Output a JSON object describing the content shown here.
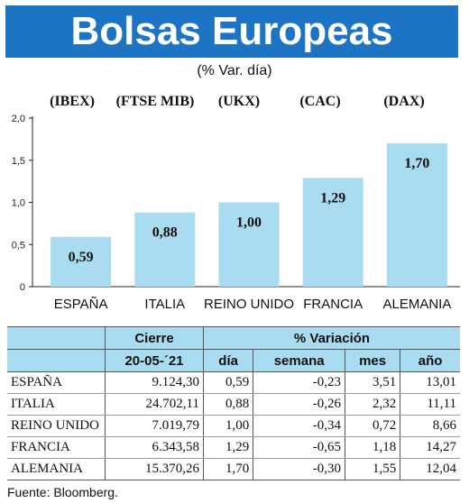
{
  "header": {
    "title": "Bolsas Europeas",
    "subtitle": "(% Var. día)"
  },
  "tickers": [
    "(IBEX)",
    "(FTSE MIB)",
    "(UKX)",
    "(CAC)",
    "(DAX)"
  ],
  "chart_data": {
    "type": "bar",
    "categories": [
      "ESPAÑA",
      "ITALIA",
      "REINO UNIDO",
      "FRANCIA",
      "ALEMANIA"
    ],
    "values": [
      0.59,
      0.88,
      1.0,
      1.29,
      1.7
    ],
    "value_labels": [
      "0,59",
      "0,88",
      "1,00",
      "1,29",
      "1,70"
    ],
    "yticks": [
      "0",
      "0,5",
      "1,0",
      "1,5",
      "2,0"
    ],
    "ylim": [
      0,
      2.0
    ],
    "bar_color": "#a9dcf0",
    "grid": false
  },
  "table": {
    "group_headers": {
      "cierre": "Cierre",
      "variacion": "% Variación"
    },
    "sub_headers": {
      "date": "20-05-´21",
      "dia": "día",
      "semana": "semana",
      "mes": "mes",
      "ano": "año"
    },
    "rows": [
      {
        "country": "ESPAÑA",
        "cierre": "9.124,30",
        "dia": "0,59",
        "semana": "-0,23",
        "mes": "3,51",
        "ano": "13,01"
      },
      {
        "country": "ITALIA",
        "cierre": "24.702,11",
        "dia": "0,88",
        "semana": "-0,26",
        "mes": "2,32",
        "ano": "11,11"
      },
      {
        "country": "REINO UNIDO",
        "cierre": "7.019,79",
        "dia": "1,00",
        "semana": "-0,34",
        "mes": "0,72",
        "ano": "8,66"
      },
      {
        "country": "FRANCIA",
        "cierre": "6.343,58",
        "dia": "1,29",
        "semana": "-0,65",
        "mes": "1,18",
        "ano": "14,27"
      },
      {
        "country": "ALEMANIA",
        "cierre": "15.370,26",
        "dia": "1,70",
        "semana": "-0,30",
        "mes": "1,55",
        "ano": "12,04"
      }
    ]
  },
  "source": "Fuente: Bloomberg.",
  "colors": {
    "banner": "#1e74c4",
    "header_fill": "#a9dcf0"
  }
}
